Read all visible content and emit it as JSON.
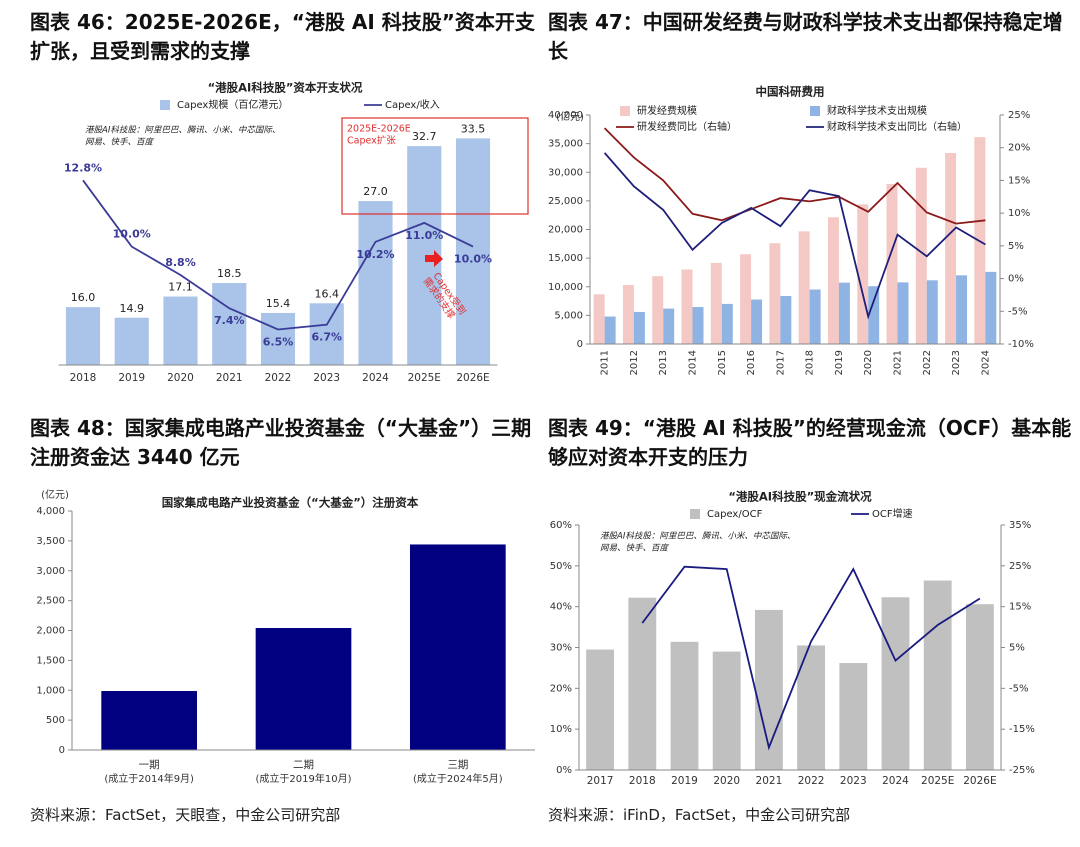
{
  "chart_data": [
    {
      "type": "combo",
      "figure_title": "图表 46：2025E-2026E，“港股 AI 科技股”资本开支扩张，且受到需求的支撑",
      "title": "“港股AI科技股”资本开支状况",
      "note": [
        "港股AI科技股：阿里巴巴、腾讯、小米、中芯国际、",
        "网易、快手、百度"
      ],
      "box_note": [
        "2025E-2026E",
        "Capex扩张"
      ],
      "arrow_note": [
        "Capex受到",
        "需求的支撑"
      ],
      "categories": [
        "2018",
        "2019",
        "2020",
        "2021",
        "2022",
        "2023",
        "2024",
        "2025E",
        "2026E"
      ],
      "ylim": [
        10,
        38
      ],
      "y2lim": [
        5,
        16.4
      ],
      "series": [
        {
          "name": "Capex规模（百亿港元）",
          "type": "bar",
          "color": "#a9c4e8",
          "values": [
            16.0,
            14.9,
            17.1,
            18.5,
            15.4,
            16.4,
            27.0,
            32.7,
            33.5
          ],
          "value_labels": [
            "16.0",
            "14.9",
            "17.1",
            "18.5",
            "15.4",
            "16.4",
            "27.0",
            "32.7",
            "33.5"
          ]
        },
        {
          "name": "Capex/收入",
          "type": "line",
          "axis": "y2",
          "color": "#3b3b98",
          "values": [
            12.8,
            10.0,
            8.8,
            7.4,
            6.5,
            6.7,
            10.2,
            11.0,
            10.0
          ],
          "value_labels": [
            "12.8%",
            "10.0%",
            "8.8%",
            "7.4%",
            "6.5%",
            "6.7%",
            "10.2%",
            "11.0%",
            "10.0%"
          ]
        }
      ]
    },
    {
      "type": "combo",
      "figure_title": "图表 47：中国研发经费与财政科学技术支出都保持稳定增长",
      "title": "中国科研费用",
      "unit": "(亿元)",
      "categories": [
        "2011",
        "2012",
        "2013",
        "2014",
        "2015",
        "2016",
        "2017",
        "2018",
        "2019",
        "2020",
        "2021",
        "2022",
        "2023",
        "2024"
      ],
      "ylim": [
        0,
        40000
      ],
      "yticks": [
        0,
        {
          "value": 5000,
          "label": "5,000"
        },
        {
          "value": 10000,
          "label": "10,000"
        },
        {
          "value": 15000,
          "label": "15,000"
        },
        {
          "value": 20000,
          "label": "20,000"
        },
        {
          "value": 25000,
          "label": "25,000"
        },
        {
          "value": 30000,
          "label": "30,000"
        },
        {
          "value": 35000,
          "label": "35,000"
        },
        {
          "value": 40000,
          "label": "40,000"
        }
      ],
      "y2lim": [
        -10,
        25
      ],
      "y2ticks": [
        {
          "value": -10,
          "label": "-10%"
        },
        {
          "value": -5,
          "label": "-5%"
        },
        {
          "value": 0,
          "label": "0%"
        },
        {
          "value": 5,
          "label": "5%"
        },
        {
          "value": 10,
          "label": "10%"
        },
        {
          "value": 15,
          "label": "15%"
        },
        {
          "value": 20,
          "label": "20%"
        },
        {
          "value": 25,
          "label": "25%"
        }
      ],
      "series": [
        {
          "name": "研发经费规模",
          "type": "bar",
          "color": "#f4c9c5",
          "values": [
            8687,
            10298,
            11847,
            13016,
            14170,
            15677,
            17606,
            19678,
            22144,
            24393,
            27956,
            30783,
            33357,
            36130
          ]
        },
        {
          "name": "财政科学技术支出规模",
          "type": "bar",
          "color": "#8fb4e3",
          "values": [
            4798,
            5600,
            6184,
            6454,
            7005,
            7761,
            8383,
            9518,
            10717,
            10095,
            10767,
            11128,
            11996,
            12600
          ]
        },
        {
          "name": "研发经费同比（右轴）",
          "type": "line",
          "axis": "y2",
          "color": "#8b1a1a",
          "values": [
            23.0,
            18.5,
            15.0,
            9.9,
            8.9,
            10.6,
            12.3,
            11.8,
            12.5,
            10.2,
            14.6,
            10.1,
            8.4,
            8.9
          ]
        },
        {
          "name": "财政科学技术支出同比（右轴）",
          "type": "line",
          "axis": "y2",
          "color": "#1f1f7a",
          "values": [
            19.2,
            14.1,
            10.5,
            4.4,
            8.5,
            10.8,
            8.0,
            13.5,
            12.6,
            -5.8,
            6.7,
            3.4,
            7.8,
            5.2
          ]
        }
      ]
    },
    {
      "type": "bar",
      "figure_title": "图表 48：国家集成电路产业投资基金（“大基金”）三期注册资金达 3440 亿元",
      "title": "国家集成电路产业投资基金（“大基金”）注册资本",
      "unit": "(亿元)",
      "source": "资料来源：FactSet，天眼查，中金公司研究部",
      "categories": [
        "一期",
        "二期",
        "三期"
      ],
      "category_notes": [
        "(成立于2014年9月)",
        "(成立于2019年10月)",
        "(成立于2024年5月)"
      ],
      "values": [
        987.2,
        2041.5,
        3440
      ],
      "color": "#000080",
      "ylim": [
        0,
        4000
      ],
      "yticks": [
        0,
        500,
        {
          "value": 1000,
          "label": "1,000"
        },
        {
          "value": 1500,
          "label": "1,500"
        },
        {
          "value": 2000,
          "label": "2,000"
        },
        {
          "value": 2500,
          "label": "2,500"
        },
        {
          "value": 3000,
          "label": "3,000"
        },
        {
          "value": 3500,
          "label": "3,500"
        },
        {
          "value": 4000,
          "label": "4,000"
        }
      ]
    },
    {
      "type": "combo",
      "figure_title": "图表 49：“港股 AI 科技股”的经营现金流（OCF）基本能够应对资本开支的压力",
      "title": "“港股AI科技股”现金流状况",
      "note": [
        "港股AI科技股：阿里巴巴、腾讯、小米、中芯国际、",
        "网易、快手、百度"
      ],
      "source": "资料来源：iFinD，FactSet，中金公司研究部",
      "categories": [
        "2017",
        "2018",
        "2019",
        "2020",
        "2021",
        "2022",
        "2023",
        "2024",
        "2025E",
        "2026E"
      ],
      "ylim": [
        0,
        60
      ],
      "yticks": [
        {
          "value": 0,
          "label": "0%"
        },
        {
          "value": 10,
          "label": "10%"
        },
        {
          "value": 20,
          "label": "20%"
        },
        {
          "value": 30,
          "label": "30%"
        },
        {
          "value": 40,
          "label": "40%"
        },
        {
          "value": 50,
          "label": "50%"
        },
        {
          "value": 60,
          "label": "60%"
        }
      ],
      "y2lim": [
        -25,
        35
      ],
      "y2ticks": [
        {
          "value": -25,
          "label": "-25%"
        },
        {
          "value": -15,
          "label": "-15%"
        },
        {
          "value": -5,
          "label": "-5%"
        },
        {
          "value": 5,
          "label": "5%"
        },
        {
          "value": 15,
          "label": "15%"
        },
        {
          "value": 25,
          "label": "25%"
        },
        {
          "value": 35,
          "label": "35%"
        }
      ],
      "series": [
        {
          "name": "Capex/OCF",
          "type": "bar",
          "color": "#c0c0c0",
          "values": [
            29.5,
            42.2,
            31.4,
            29.0,
            39.2,
            30.5,
            26.2,
            42.3,
            46.4,
            40.6
          ]
        },
        {
          "name": "OCF增速",
          "type": "line",
          "axis": "y2",
          "color": "#1a1a80",
          "values": [
            null,
            11.0,
            24.8,
            24.2,
            -19.5,
            6.5,
            24.2,
            1.8,
            10.5,
            17.0
          ]
        }
      ]
    }
  ]
}
